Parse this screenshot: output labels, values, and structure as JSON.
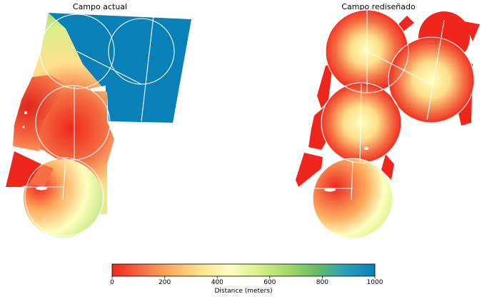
{
  "panels": {
    "left_title": "Campo actual",
    "right_title": "Campo rediseñado"
  },
  "colorbar": {
    "title": "Distance (meters)",
    "min": 0,
    "max": 1000,
    "ticks": [
      "0",
      "200",
      "400",
      "600",
      "800",
      "1000"
    ],
    "stops": [
      "#f0261c",
      "#f46d43",
      "#fdae61",
      "#fee08b",
      "#ffffbf",
      "#d9ef8b",
      "#a6d96a",
      "#66bd63",
      "#2a9fb8",
      "#0a80b8"
    ]
  },
  "colors": {
    "near": "#f0261c",
    "far": "#0a80b8",
    "outline": "#ffffff"
  }
}
